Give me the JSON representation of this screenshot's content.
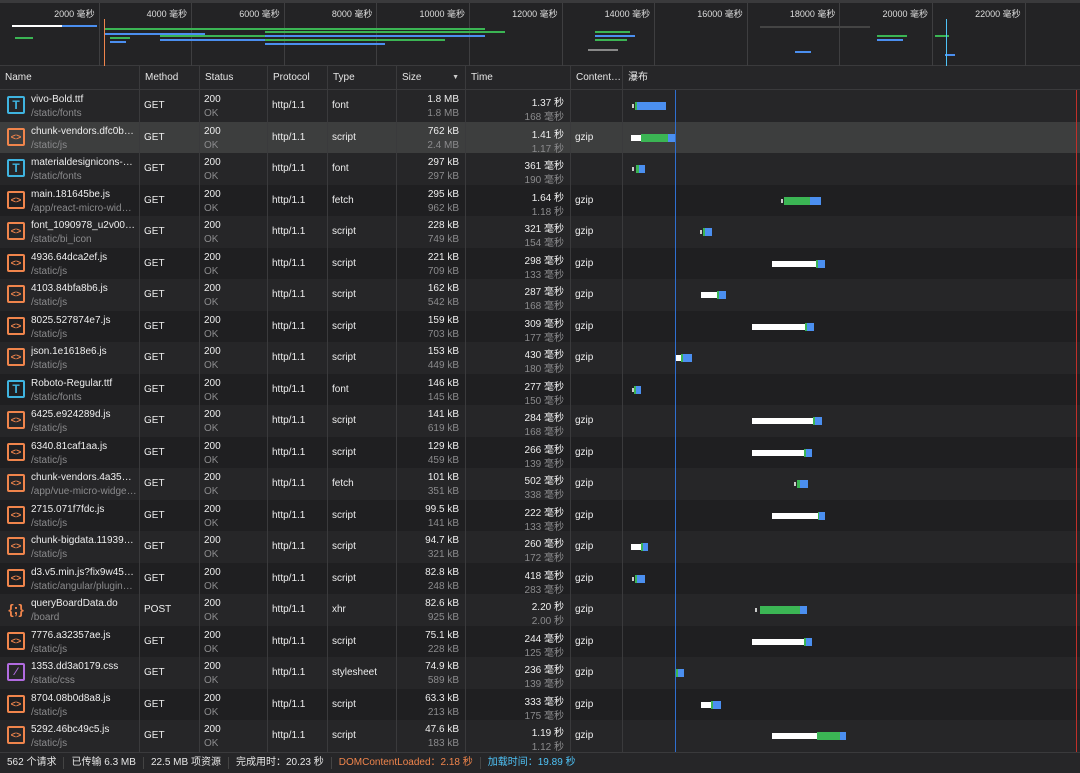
{
  "overview": {
    "ticks": [
      "2000 毫秒",
      "4000 毫秒",
      "6000 毫秒",
      "8000 毫秒",
      "10000 毫秒",
      "12000 毫秒",
      "14000 毫秒",
      "16000 毫秒",
      "18000 毫秒",
      "20000 毫秒",
      "22000 毫秒"
    ]
  },
  "columns": {
    "name": "Name",
    "method": "Method",
    "status": "Status",
    "protocol": "Protocol",
    "type": "Type",
    "size": "Size",
    "time": "Time",
    "content": "Content…",
    "waterfall": "瀑布"
  },
  "colors": {
    "accent_orange": "#f0854c",
    "accent_blue": "#3fb4e0",
    "css_purple": "#b16be0",
    "receive_green": "#3bb554",
    "download_blue": "#4b8ff0",
    "dom_loaded": "#f0854c",
    "load": "#4fc3f7"
  },
  "markers": {
    "dom_content_loaded_ms": 2180,
    "load_ms": 19890
  },
  "rows": [
    {
      "icon": "font",
      "name": "vivo-Bold.ttf",
      "path": "/static/fonts",
      "method": "GET",
      "status": "200",
      "status_text": "OK",
      "protocol": "http/1.1",
      "type": "font",
      "size": "1.8 MB",
      "size2": "1.8 MB",
      "time": "1.37 秒",
      "time2": "168 毫秒",
      "content": "",
      "wf": {
        "dot": 264,
        "green": [
          396,
          484
        ],
        "blue": [
          484,
          1760
        ]
      }
    },
    {
      "icon": "script",
      "name": "chunk-vendors.dfc0b5…",
      "path": "/static/js",
      "method": "GET",
      "status": "200",
      "status_text": "OK",
      "protocol": "http/1.1",
      "type": "script",
      "size": "762 kB",
      "size2": "2.4 MB",
      "time": "1.41 秒",
      "time2": "1.17 秒",
      "content": "gzip",
      "selected": true,
      "wf": {
        "wait": [
          220,
          660
        ],
        "green": [
          660,
          1848
        ],
        "blue": [
          1848,
          2156
        ]
      }
    },
    {
      "icon": "font",
      "name": "materialdesignicons-w…",
      "path": "/static/fonts",
      "method": "GET",
      "status": "200",
      "status_text": "OK",
      "protocol": "http/1.1",
      "type": "font",
      "size": "297 kB",
      "size2": "297 kB",
      "time": "361 毫秒",
      "time2": "190 毫秒",
      "content": "",
      "wf": {
        "dot": 264,
        "green": [
          440,
          572
        ],
        "blue": [
          572,
          836
        ]
      }
    },
    {
      "icon": "script",
      "name": "main.181645be.js",
      "path": "/app/react-micro-widg…",
      "method": "GET",
      "status": "200",
      "status_text": "OK",
      "protocol": "http/1.1",
      "type": "fetch",
      "size": "295 kB",
      "size2": "962 kB",
      "time": "1.64 秒",
      "time2": "1.18 秒",
      "content": "gzip",
      "wf": {
        "dot": 6820,
        "green": [
          6952,
          8096
        ],
        "blue": [
          8096,
          8580
        ]
      }
    },
    {
      "icon": "script",
      "name": "font_1090978_u2v00lj…",
      "path": "/static/bi_icon",
      "method": "GET",
      "status": "200",
      "status_text": "OK",
      "protocol": "http/1.1",
      "type": "script",
      "size": "228 kB",
      "size2": "749 kB",
      "time": "321 毫秒",
      "time2": "154 毫秒",
      "content": "gzip",
      "wf": {
        "dot": 3256,
        "green": [
          3388,
          3476
        ],
        "blue": [
          3476,
          3784
        ]
      }
    },
    {
      "icon": "script",
      "name": "4936.64dca2ef.js",
      "path": "/static/js",
      "method": "GET",
      "status": "200",
      "status_text": "OK",
      "protocol": "http/1.1",
      "type": "script",
      "size": "221 kB",
      "size2": "709 kB",
      "time": "298 毫秒",
      "time2": "133 毫秒",
      "content": "gzip",
      "wf": {
        "wait": [
          6424,
          8360
        ],
        "green": [
          8360,
          8448
        ],
        "blue": [
          8448,
          8756
        ]
      }
    },
    {
      "icon": "script",
      "name": "4103.84bfa8b6.js",
      "path": "/static/js",
      "method": "GET",
      "status": "200",
      "status_text": "OK",
      "protocol": "http/1.1",
      "type": "script",
      "size": "162 kB",
      "size2": "542 kB",
      "time": "287 毫秒",
      "time2": "168 毫秒",
      "content": "gzip",
      "wf": {
        "wait": [
          3300,
          4004
        ],
        "green": [
          4004,
          4092
        ],
        "blue": [
          4092,
          4400
        ]
      }
    },
    {
      "icon": "script",
      "name": "8025.527874e7.js",
      "path": "/static/js",
      "method": "GET",
      "status": "200",
      "status_text": "OK",
      "protocol": "http/1.1",
      "type": "script",
      "size": "159 kB",
      "size2": "703 kB",
      "time": "309 毫秒",
      "time2": "177 毫秒",
      "content": "gzip",
      "wf": {
        "wait": [
          5544,
          7876
        ],
        "green": [
          7876,
          7964
        ],
        "blue": [
          7964,
          8272
        ]
      }
    },
    {
      "icon": "script",
      "name": "json.1e1618e6.js",
      "path": "/static/js",
      "method": "GET",
      "status": "200",
      "status_text": "OK",
      "protocol": "http/1.1",
      "type": "script",
      "size": "153 kB",
      "size2": "449 kB",
      "time": "430 毫秒",
      "time2": "180 毫秒",
      "content": "gzip",
      "wf": {
        "wait": [
          2156,
          2420
        ],
        "green": [
          2420,
          2508
        ],
        "blue": [
          2508,
          2904
        ]
      }
    },
    {
      "icon": "font",
      "name": "Roboto-Regular.ttf",
      "path": "/static/fonts",
      "method": "GET",
      "status": "200",
      "status_text": "OK",
      "protocol": "http/1.1",
      "type": "font",
      "size": "146 kB",
      "size2": "145 kB",
      "time": "277 毫秒",
      "time2": "150 毫秒",
      "content": "",
      "wf": {
        "dot": 264,
        "green": [
          352,
          440
        ],
        "blue": [
          440,
          660
        ]
      }
    },
    {
      "icon": "script",
      "name": "6425.e924289d.js",
      "path": "/static/js",
      "method": "GET",
      "status": "200",
      "status_text": "OK",
      "protocol": "http/1.1",
      "type": "script",
      "size": "141 kB",
      "size2": "619 kB",
      "time": "284 毫秒",
      "time2": "168 毫秒",
      "content": "gzip",
      "wf": {
        "wait": [
          5544,
          8228
        ],
        "green": [
          8228,
          8316
        ],
        "blue": [
          8316,
          8624
        ]
      }
    },
    {
      "icon": "script",
      "name": "6340.81caf1aa.js",
      "path": "/static/js",
      "method": "GET",
      "status": "200",
      "status_text": "OK",
      "protocol": "http/1.1",
      "type": "script",
      "size": "129 kB",
      "size2": "459 kB",
      "time": "266 毫秒",
      "time2": "139 毫秒",
      "content": "gzip",
      "wf": {
        "wait": [
          5544,
          7832
        ],
        "green": [
          7832,
          7920
        ],
        "blue": [
          7920,
          8184
        ]
      }
    },
    {
      "icon": "script",
      "name": "chunk-vendors.4a351…",
      "path": "/app/vue-micro-widge…",
      "method": "GET",
      "status": "200",
      "status_text": "OK",
      "protocol": "http/1.1",
      "type": "fetch",
      "size": "101 kB",
      "size2": "351 kB",
      "time": "502 毫秒",
      "time2": "338 毫秒",
      "content": "gzip",
      "wf": {
        "dot": 7392,
        "green": [
          7524,
          7656
        ],
        "blue": [
          7656,
          8008
        ]
      }
    },
    {
      "icon": "script",
      "name": "2715.071f7fdc.js",
      "path": "/static/js",
      "method": "GET",
      "status": "200",
      "status_text": "OK",
      "protocol": "http/1.1",
      "type": "script",
      "size": "99.5 kB",
      "size2": "141 kB",
      "time": "222 毫秒",
      "time2": "133 毫秒",
      "content": "gzip",
      "wf": {
        "wait": [
          6424,
          8448
        ],
        "green": [
          8448,
          8490
        ],
        "blue": [
          8490,
          8756
        ]
      }
    },
    {
      "icon": "script",
      "name": "chunk-bigdata.11939b…",
      "path": "/static/js",
      "method": "GET",
      "status": "200",
      "status_text": "OK",
      "protocol": "http/1.1",
      "type": "script",
      "size": "94.7 kB",
      "size2": "321 kB",
      "time": "260 毫秒",
      "time2": "172 毫秒",
      "content": "gzip",
      "wf": {
        "wait": [
          220,
          660
        ],
        "green": [
          660,
          748
        ],
        "blue": [
          748,
          968
        ]
      }
    },
    {
      "icon": "script",
      "name": "d3.v5.min.js?fix9w458…",
      "path": "/static/angular/plugins/…",
      "method": "GET",
      "status": "200",
      "status_text": "OK",
      "protocol": "http/1.1",
      "type": "script",
      "size": "82.8 kB",
      "size2": "248 kB",
      "time": "418 毫秒",
      "time2": "283 毫秒",
      "content": "gzip",
      "wf": {
        "dot": 264,
        "green": [
          396,
          484
        ],
        "blue": [
          484,
          836
        ]
      }
    },
    {
      "icon": "xhr",
      "name": "queryBoardData.do",
      "path": "/board",
      "method": "POST",
      "status": "200",
      "status_text": "OK",
      "protocol": "http/1.1",
      "type": "xhr",
      "size": "82.6 kB",
      "size2": "925 kB",
      "time": "2.20 秒",
      "time2": "2.00 秒",
      "content": "gzip",
      "wf": {
        "dot": 5676,
        "green": [
          5896,
          7656
        ],
        "blue": [
          7656,
          7964
        ]
      }
    },
    {
      "icon": "script",
      "name": "7776.a32357ae.js",
      "path": "/static/js",
      "method": "GET",
      "status": "200",
      "status_text": "OK",
      "protocol": "http/1.1",
      "type": "script",
      "size": "75.1 kB",
      "size2": "228 kB",
      "time": "244 毫秒",
      "time2": "125 毫秒",
      "content": "gzip",
      "wf": {
        "wait": [
          5544,
          7832
        ],
        "green": [
          7832,
          7920
        ],
        "blue": [
          7920,
          8184
        ]
      }
    },
    {
      "icon": "css",
      "name": "1353.dd3a0179.css",
      "path": "/static/css",
      "method": "GET",
      "status": "200",
      "status_text": "OK",
      "protocol": "http/1.1",
      "type": "stylesheet",
      "size": "74.9 kB",
      "size2": "589 kB",
      "time": "236 毫秒",
      "time2": "139 毫秒",
      "content": "gzip",
      "wf": {
        "green": [
          2200,
          2288
        ],
        "blue": [
          2288,
          2552
        ]
      }
    },
    {
      "icon": "script",
      "name": "8704.08b0d8a8.js",
      "path": "/static/js",
      "method": "GET",
      "status": "200",
      "status_text": "OK",
      "protocol": "http/1.1",
      "type": "script",
      "size": "63.3 kB",
      "size2": "213 kB",
      "time": "333 毫秒",
      "time2": "175 毫秒",
      "content": "gzip",
      "wf": {
        "wait": [
          3300,
          3740
        ],
        "green": [
          3740,
          3828
        ],
        "blue": [
          3828,
          4180
        ]
      }
    },
    {
      "icon": "script",
      "name": "5292.46bc49c5.js",
      "path": "/static/js",
      "method": "GET",
      "status": "200",
      "status_text": "OK",
      "protocol": "http/1.1",
      "type": "script",
      "size": "47.6 kB",
      "size2": "183 kB",
      "time": "1.19 秒",
      "time2": "1.12 秒",
      "content": "gzip",
      "wf": {
        "wait": [
          6424,
          8404
        ],
        "green": [
          8404,
          9416
        ],
        "blue": [
          9416,
          9680
        ]
      }
    }
  ],
  "status_bar": {
    "requests": "562 个请求",
    "transferred": "已传输 6.3 MB",
    "resources": "22.5 MB 项资源",
    "finish": "完成用时：20.23 秒",
    "dom_loaded": "DOMContentLoaded：2.18 秒",
    "load": "加载时间：19.89 秒"
  }
}
